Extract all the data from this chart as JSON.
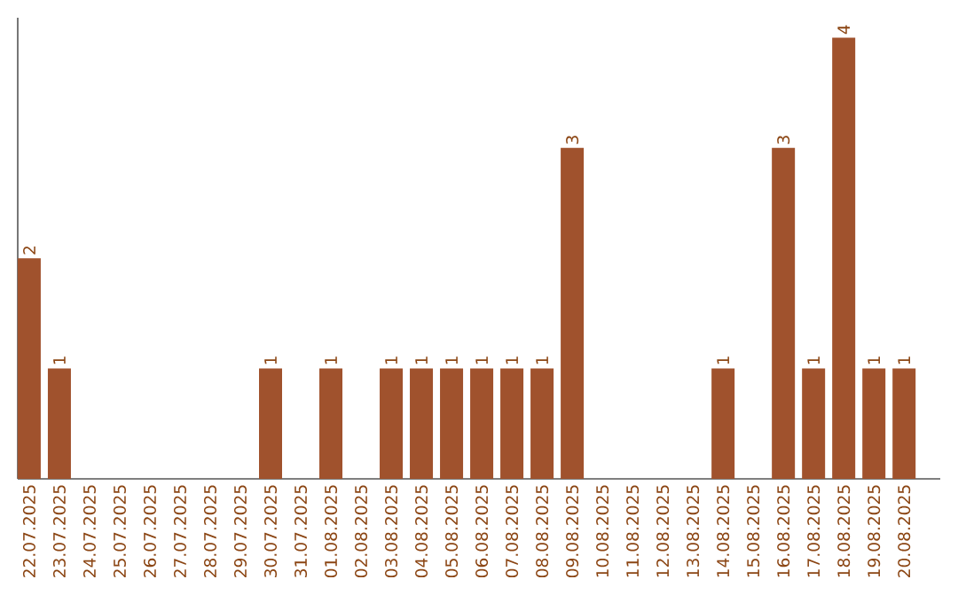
{
  "chart_data": {
    "type": "bar",
    "categories": [
      "22.07.2025",
      "23.07.2025",
      "24.07.2025",
      "25.07.2025",
      "26.07.2025",
      "27.07.2025",
      "28.07.2025",
      "29.07.2025",
      "30.07.2025",
      "31.07.2025",
      "01.08.2025",
      "02.08.2025",
      "03.08.2025",
      "04.08.2025",
      "05.08.2025",
      "06.08.2025",
      "07.08.2025",
      "08.08.2025",
      "09.08.2025",
      "10.08.2025",
      "11.08.2025",
      "12.08.2025",
      "13.08.2025",
      "14.08.2025",
      "15.08.2025",
      "16.08.2025",
      "17.08.2025",
      "18.08.2025",
      "19.08.2025",
      "20.08.2025"
    ],
    "values": [
      2,
      1,
      0,
      0,
      0,
      0,
      0,
      0,
      1,
      0,
      1,
      0,
      1,
      1,
      1,
      1,
      1,
      1,
      3,
      0,
      0,
      0,
      0,
      1,
      0,
      3,
      1,
      4,
      1,
      1
    ],
    "value_labels": [
      "2",
      "1",
      null,
      null,
      null,
      null,
      null,
      null,
      "1",
      null,
      "1",
      null,
      "1",
      "1",
      "1",
      "1",
      "1",
      "1",
      "3",
      null,
      null,
      null,
      null,
      "1",
      null,
      "3",
      "1",
      "4",
      "1",
      "1"
    ],
    "color": "#a0522d"
  }
}
